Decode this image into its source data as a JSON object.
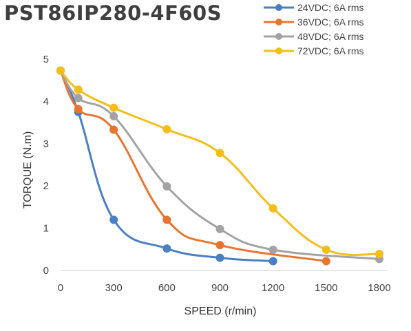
{
  "chart_data": {
    "type": "line",
    "title": "PST86IP280-4F60S",
    "xlabel": "SPEED (r/min)",
    "ylabel": "TORQUE (N.m)",
    "xlim": [
      0,
      1800
    ],
    "ylim": [
      0,
      5
    ],
    "xticks": [
      0,
      300,
      600,
      900,
      1200,
      1500,
      1800
    ],
    "yticks": [
      0,
      1,
      2,
      3,
      4,
      5
    ],
    "grid": false,
    "legend_position": "top-right",
    "series": [
      {
        "name": "24VDC; 6A rms",
        "color": "#4a7fc3",
        "x": [
          0,
          100,
          300,
          600,
          900,
          1200
        ],
        "y": [
          4.73,
          3.75,
          1.2,
          0.52,
          0.3,
          0.22
        ]
      },
      {
        "name": "36VDC; 6A rms",
        "color": "#e9742f",
        "x": [
          0,
          100,
          300,
          600,
          900,
          1500
        ],
        "y": [
          4.73,
          3.82,
          3.33,
          1.2,
          0.6,
          0.22
        ]
      },
      {
        "name": "48VDC; 6A rms",
        "color": "#a3a3a3",
        "x": [
          0,
          100,
          300,
          600,
          900,
          1200,
          1800
        ],
        "y": [
          4.73,
          4.08,
          3.65,
          1.99,
          0.98,
          0.49,
          0.27
        ]
      },
      {
        "name": "72VDC; 6A rms",
        "color": "#f5bd18",
        "x": [
          0,
          100,
          300,
          600,
          900,
          1200,
          1500,
          1800
        ],
        "y": [
          4.73,
          4.28,
          3.85,
          3.34,
          2.78,
          1.47,
          0.49,
          0.39
        ]
      }
    ]
  }
}
